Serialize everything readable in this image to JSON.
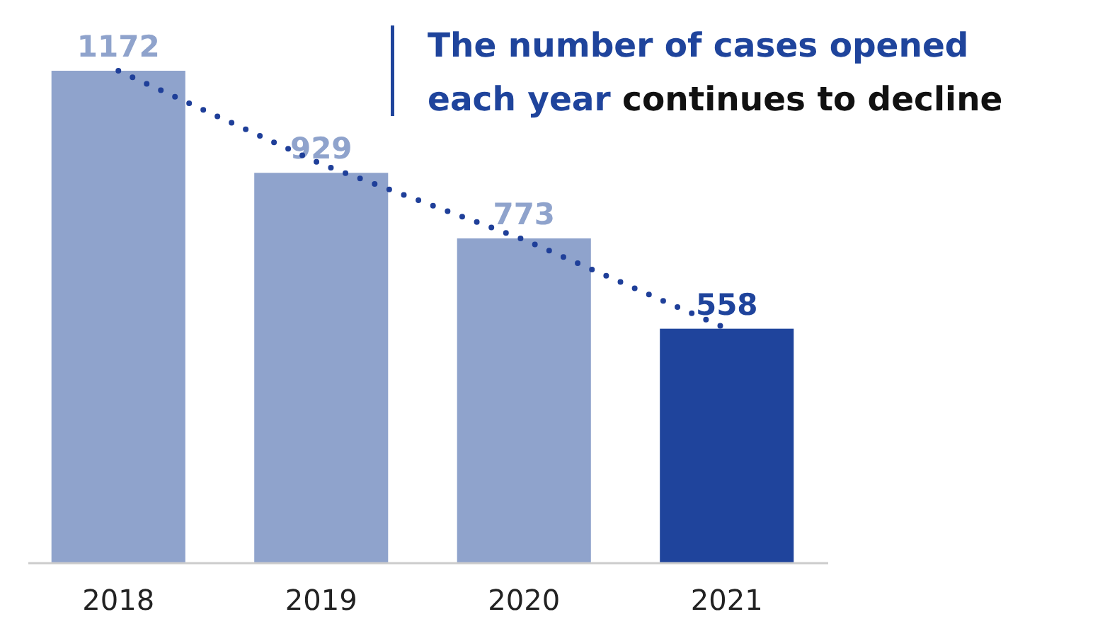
{
  "chart_data": {
    "type": "bar",
    "title": "The number of cases opened each year continues to decline",
    "categories": [
      "2018",
      "2019",
      "2020",
      "2021"
    ],
    "series": [
      {
        "colors": [
          "#8fa3cc",
          "#8fa3cc",
          "#8fa3cc",
          "#1f449c"
        ],
        "values": [
          1172,
          929,
          773,
          558
        ],
        "value_labels": [
          "1172",
          "929",
          "773",
          "558"
        ]
      },
      {
        "type": "line",
        "color": "#1f3f99",
        "line_style": "dotted",
        "values": [
          1172,
          950,
          770,
          558
        ]
      }
    ]
  }
}
